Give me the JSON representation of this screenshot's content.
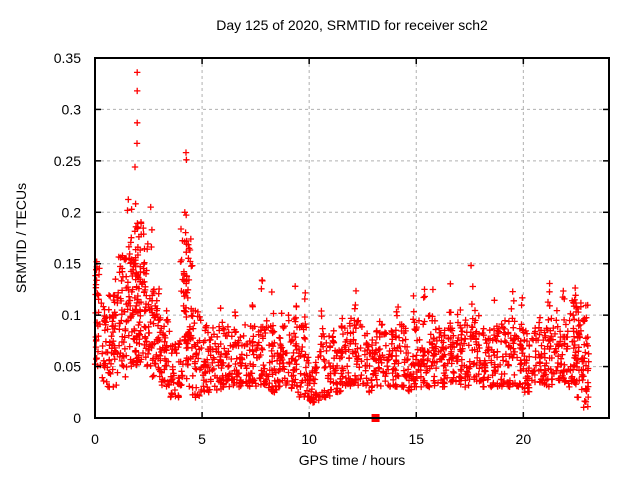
{
  "chart_data": {
    "type": "scatter",
    "title": "Day 125 of 2020, SRMTID for receiver sch2",
    "xlabel": "GPS time / hours",
    "ylabel": "SRMTID / TECUs",
    "xlim": [
      0,
      24
    ],
    "ylim": [
      0,
      0.35
    ],
    "xticks": [
      0,
      5,
      10,
      15,
      20
    ],
    "yticks": [
      0,
      0.05,
      0.1,
      0.15,
      0.2,
      0.25,
      0.3,
      0.35
    ],
    "grid": true,
    "grid_color": "#b0b0b0",
    "legend": false,
    "marker_color": "#ff0000",
    "seed": 7,
    "series": [
      {
        "name": "srmtid-plus-markers",
        "marker": "plus",
        "color": "#ff0000",
        "cloud_bins": [
          [
            0.0,
            0.3,
            0.05,
            0.15,
            22
          ],
          [
            0.3,
            0.6,
            0.035,
            0.1,
            20
          ],
          [
            0.6,
            1.0,
            0.03,
            0.12,
            40
          ],
          [
            1.0,
            1.5,
            0.04,
            0.16,
            45
          ],
          [
            1.5,
            2.0,
            0.05,
            0.215,
            55
          ],
          [
            2.0,
            2.5,
            0.05,
            0.19,
            50
          ],
          [
            2.5,
            3.0,
            0.04,
            0.13,
            45
          ],
          [
            3.0,
            3.5,
            0.03,
            0.1,
            38
          ],
          [
            3.5,
            4.0,
            0.02,
            0.075,
            36
          ],
          [
            4.0,
            4.5,
            0.03,
            0.19,
            48
          ],
          [
            4.5,
            5.0,
            0.02,
            0.105,
            38
          ],
          [
            5.0,
            5.5,
            0.025,
            0.085,
            36
          ],
          [
            5.5,
            6.0,
            0.025,
            0.095,
            36
          ],
          [
            6.0,
            6.5,
            0.03,
            0.09,
            36
          ],
          [
            6.5,
            7.0,
            0.03,
            0.085,
            36
          ],
          [
            7.0,
            7.5,
            0.03,
            0.095,
            36
          ],
          [
            7.5,
            8.0,
            0.03,
            0.09,
            36
          ],
          [
            8.0,
            8.5,
            0.025,
            0.095,
            36
          ],
          [
            8.5,
            9.0,
            0.03,
            0.09,
            36
          ],
          [
            9.0,
            9.5,
            0.025,
            0.1,
            36
          ],
          [
            9.5,
            10.0,
            0.02,
            0.09,
            36
          ],
          [
            10.0,
            10.5,
            0.015,
            0.065,
            34
          ],
          [
            10.5,
            11.0,
            0.02,
            0.08,
            34
          ],
          [
            11.0,
            11.5,
            0.025,
            0.085,
            35
          ],
          [
            11.5,
            12.0,
            0.03,
            0.09,
            35
          ],
          [
            12.0,
            12.5,
            0.03,
            0.095,
            36
          ],
          [
            12.5,
            13.0,
            0.025,
            0.085,
            35
          ],
          [
            13.0,
            13.5,
            0.03,
            0.095,
            35
          ],
          [
            13.5,
            14.0,
            0.03,
            0.085,
            35
          ],
          [
            14.0,
            14.5,
            0.03,
            0.095,
            36
          ],
          [
            14.5,
            15.0,
            0.025,
            0.09,
            35
          ],
          [
            15.0,
            15.5,
            0.03,
            0.1,
            36
          ],
          [
            15.5,
            16.0,
            0.03,
            0.1,
            37
          ],
          [
            16.0,
            16.5,
            0.03,
            0.095,
            37
          ],
          [
            16.5,
            17.0,
            0.035,
            0.105,
            38
          ],
          [
            17.0,
            17.5,
            0.03,
            0.1,
            37
          ],
          [
            17.5,
            18.0,
            0.035,
            0.105,
            38
          ],
          [
            18.0,
            18.5,
            0.03,
            0.09,
            36
          ],
          [
            18.5,
            19.0,
            0.03,
            0.095,
            37
          ],
          [
            19.0,
            19.5,
            0.03,
            0.1,
            37
          ],
          [
            19.5,
            20.0,
            0.03,
            0.095,
            36
          ],
          [
            20.0,
            20.5,
            0.025,
            0.085,
            35
          ],
          [
            20.5,
            21.0,
            0.03,
            0.09,
            35
          ],
          [
            21.0,
            21.5,
            0.03,
            0.1,
            37
          ],
          [
            21.5,
            22.0,
            0.035,
            0.105,
            40
          ],
          [
            22.0,
            22.5,
            0.03,
            0.115,
            45
          ],
          [
            22.5,
            23.05,
            0.01,
            0.12,
            50
          ]
        ],
        "spike_columns": [
          [
            0.08,
            0.155,
            10
          ],
          [
            0.45,
            0.12,
            6
          ],
          [
            0.9,
            0.15,
            8
          ],
          [
            1.3,
            0.14,
            6
          ],
          [
            1.7,
            0.19,
            10
          ],
          [
            1.95,
            0.215,
            20
          ],
          [
            2.1,
            0.2,
            12
          ],
          [
            2.35,
            0.17,
            7
          ],
          [
            2.6,
            0.19,
            6
          ],
          [
            3.0,
            0.13,
            6
          ],
          [
            3.3,
            0.11,
            5
          ],
          [
            4.22,
            0.225,
            16
          ],
          [
            4.35,
            0.2,
            10
          ],
          [
            4.5,
            0.16,
            6
          ],
          [
            5.15,
            0.115,
            5
          ],
          [
            5.9,
            0.115,
            6
          ],
          [
            6.5,
            0.105,
            5
          ],
          [
            7.4,
            0.12,
            6
          ],
          [
            7.8,
            0.134,
            5
          ],
          [
            8.3,
            0.125,
            6
          ],
          [
            8.7,
            0.11,
            5
          ],
          [
            9.35,
            0.145,
            8
          ],
          [
            9.8,
            0.13,
            6
          ],
          [
            10.6,
            0.13,
            5
          ],
          [
            11.5,
            0.105,
            5
          ],
          [
            11.9,
            0.125,
            6
          ],
          [
            12.15,
            0.13,
            5
          ],
          [
            13.3,
            0.115,
            5
          ],
          [
            14.1,
            0.13,
            6
          ],
          [
            14.9,
            0.12,
            5
          ],
          [
            15.4,
            0.13,
            6
          ],
          [
            15.8,
            0.135,
            6
          ],
          [
            16.6,
            0.145,
            7
          ],
          [
            17.1,
            0.125,
            5
          ],
          [
            17.6,
            0.15,
            8
          ],
          [
            18.6,
            0.12,
            5
          ],
          [
            19.5,
            0.135,
            6
          ],
          [
            19.9,
            0.125,
            5
          ],
          [
            20.8,
            0.115,
            5
          ],
          [
            21.2,
            0.145,
            6
          ],
          [
            21.9,
            0.13,
            6
          ],
          [
            22.4,
            0.15,
            8
          ],
          [
            22.6,
            0.135,
            6
          ],
          [
            22.95,
            0.125,
            6
          ]
        ],
        "outliers": [
          [
            1.97,
            0.336
          ],
          [
            1.97,
            0.318
          ],
          [
            1.97,
            0.287
          ],
          [
            1.96,
            0.267
          ],
          [
            1.87,
            0.244
          ],
          [
            4.25,
            0.258
          ],
          [
            4.27,
            0.251
          ],
          [
            2.6,
            0.205
          ],
          [
            0.08,
            0.152
          ],
          [
            7.8,
            0.134
          ],
          [
            9.35,
            0.128
          ]
        ]
      },
      {
        "name": "flag-square-marker",
        "marker": "filled-square",
        "color": "#ff0000",
        "points": [
          [
            13.1,
            0.0
          ]
        ]
      }
    ]
  }
}
